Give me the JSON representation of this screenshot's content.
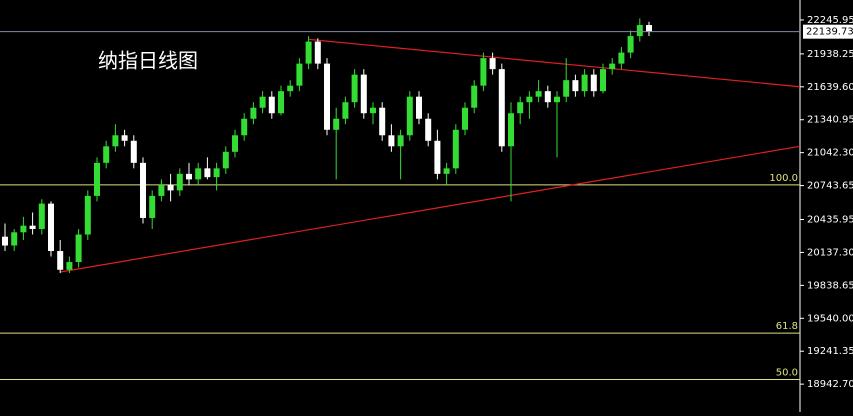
{
  "chart_data": {
    "type": "candlestick",
    "title": "纳指日线图",
    "up_color": "#33dd33",
    "down_color": "#ffffff",
    "background": "#000000",
    "open": [
      20280,
      20200,
      20320,
      20380,
      20350,
      20580,
      20150,
      19980,
      20050,
      20300,
      20650,
      20950,
      21100,
      21200,
      21150,
      20950,
      20450,
      20650,
      20750,
      20700,
      20850,
      20800,
      20900,
      20820,
      20900,
      21050,
      21200,
      21350,
      21450,
      21550,
      21400,
      21600,
      21650,
      21850,
      22050,
      21850,
      21250,
      21350,
      21500,
      21750,
      21400,
      21450,
      21200,
      21100,
      21200,
      21550,
      21350,
      21150,
      20850,
      20900,
      21250,
      21450,
      21650,
      21900,
      21800,
      21100,
      21400,
      21500,
      21550,
      21600,
      21500,
      21550,
      21700,
      21600,
      21750,
      21600,
      21800,
      21850,
      21950,
      22100,
      22200
    ],
    "high": [
      20400,
      20350,
      20460,
      20500,
      20620,
      20600,
      20250,
      20100,
      20350,
      20700,
      21000,
      21150,
      21300,
      21250,
      21200,
      21000,
      20700,
      20800,
      20850,
      20900,
      20950,
      20950,
      21000,
      20950,
      21100,
      21250,
      21400,
      21500,
      21600,
      21600,
      21650,
      21700,
      21900,
      22100,
      22080,
      21900,
      21450,
      21550,
      21800,
      21800,
      21500,
      21500,
      21300,
      21250,
      21600,
      21600,
      21400,
      21250,
      20950,
      21300,
      21500,
      21700,
      21950,
      21950,
      21850,
      21500,
      21550,
      21600,
      21700,
      21650,
      21600,
      21900,
      21750,
      21800,
      21800,
      21850,
      21900,
      22000,
      22150,
      22260,
      22230
    ],
    "low": [
      20150,
      20150,
      20250,
      20300,
      20300,
      20100,
      19950,
      19950,
      20000,
      20250,
      20600,
      20900,
      21050,
      21100,
      20900,
      20400,
      20350,
      20600,
      20600,
      20650,
      20750,
      20750,
      20800,
      20700,
      20850,
      21000,
      21150,
      21300,
      21400,
      21350,
      21380,
      21550,
      21600,
      21800,
      21800,
      21200,
      20800,
      21300,
      21450,
      21350,
      21300,
      21150,
      21050,
      20800,
      21150,
      21300,
      21100,
      20800,
      20750,
      20850,
      21200,
      21400,
      21600,
      21750,
      21050,
      20600,
      21300,
      21350,
      21500,
      21450,
      21000,
      21500,
      21550,
      21550,
      21550,
      21580,
      21750,
      21800,
      21900,
      22050,
      22100
    ],
    "close": [
      20200,
      20320,
      20380,
      20350,
      20580,
      20150,
      19980,
      20050,
      20300,
      20650,
      20950,
      21100,
      21200,
      21150,
      20950,
      20450,
      20650,
      20750,
      20700,
      20850,
      20800,
      20900,
      20820,
      20900,
      21050,
      21200,
      21350,
      21450,
      21550,
      21400,
      21600,
      21650,
      21850,
      22050,
      21850,
      21250,
      21350,
      21500,
      21750,
      21400,
      21450,
      21200,
      21100,
      21200,
      21550,
      21350,
      21150,
      20850,
      20900,
      21250,
      21450,
      21650,
      21900,
      21800,
      21100,
      21400,
      21500,
      21550,
      21600,
      21500,
      21550,
      21700,
      21600,
      21750,
      21600,
      21800,
      21850,
      21950,
      22100,
      22200,
      22139.73
    ],
    "ylim": [
      18690,
      22427
    ],
    "yticks": [
      22245.95,
      21938.25,
      {
        "value": 21639.6,
        "label": "21639.60"
      },
      21340.95,
      {
        "value": 21042.3,
        "label": "21042.30"
      },
      20743.65,
      20435.95,
      {
        "value": 20137.3,
        "label": "20137.30"
      },
      19838.65,
      {
        "value": 19540,
        "label": "19540.00"
      },
      19241.35,
      {
        "value": 18942.7,
        "label": "18942.70"
      }
    ],
    "hlines": [
      {
        "value": 20750,
        "label": "100.0",
        "color": "#e0e080"
      },
      {
        "value": 19405,
        "label": "61.8",
        "color": "#e0e080"
      },
      {
        "value": 18985,
        "label": "50.0",
        "color": "#e0e080"
      }
    ],
    "trendlines": [
      {
        "x": [
          33,
          86.4
        ],
        "values": [
          22070,
          21640
        ],
        "color": "#e02020"
      },
      {
        "x": [
          6,
          86.4
        ],
        "values": [
          19960,
          21100
        ],
        "color": "#e02020"
      }
    ]
  }
}
